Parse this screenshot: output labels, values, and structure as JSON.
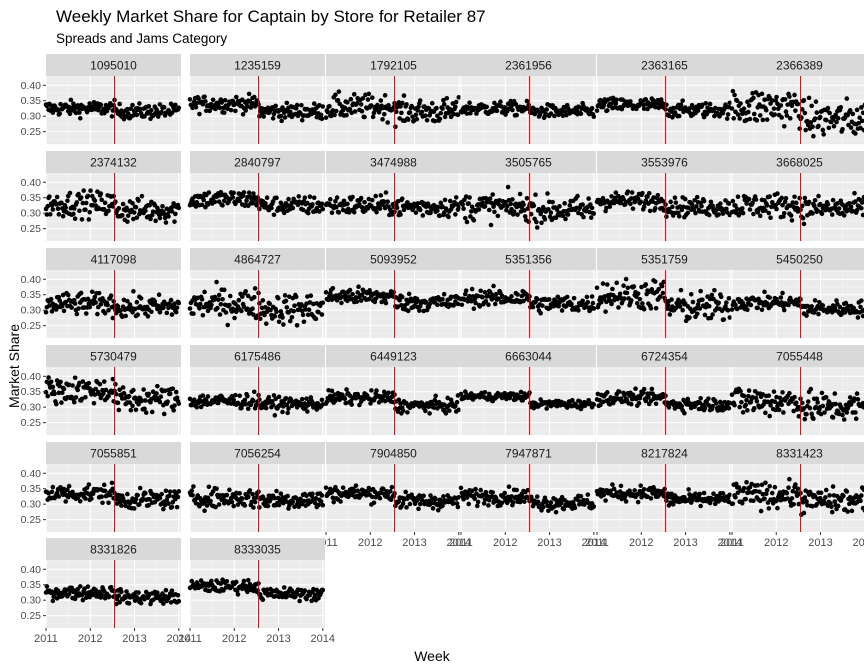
{
  "chart_data": {
    "type": "scatter",
    "title": "Weekly Market Share for Captain by Store for Retailer 87",
    "subtitle": "Spreads and Jams Category",
    "xlabel": "Week",
    "ylabel": "Market Share",
    "xlim": [
      2011.0,
      2014.05
    ],
    "ylim": [
      0.21,
      0.43
    ],
    "x_ticks": [
      2011,
      2012,
      2013,
      2014
    ],
    "x_tick_labels": [
      "2011",
      "2012",
      "2013",
      "2014"
    ],
    "y_ticks": [
      0.25,
      0.3,
      0.35,
      0.4
    ],
    "y_tick_labels": [
      "0.25",
      "0.30",
      "0.35",
      "0.40"
    ],
    "reference_line": {
      "x": 2012.55,
      "color": "#cc0000"
    },
    "facet_layout": {
      "columns": 6,
      "rows": 6
    },
    "point_color": "#000000",
    "panel_background": "#ebebeb",
    "strip_background": "#d9d9d9",
    "grid": true,
    "facets": [
      {
        "label": "1095010",
        "before": 0.325,
        "after": 0.315,
        "spread": 0.012
      },
      {
        "label": "1235159",
        "before": 0.34,
        "after": 0.315,
        "spread": 0.013
      },
      {
        "label": "1792105",
        "before": 0.33,
        "after": 0.315,
        "spread": 0.02
      },
      {
        "label": "2361956",
        "before": 0.325,
        "after": 0.315,
        "spread": 0.011
      },
      {
        "label": "2363165",
        "before": 0.335,
        "after": 0.32,
        "spread": 0.012
      },
      {
        "label": "2366389",
        "before": 0.33,
        "after": 0.29,
        "spread": 0.03
      },
      {
        "label": "2374132",
        "before": 0.33,
        "after": 0.31,
        "spread": 0.02
      },
      {
        "label": "2840797",
        "before": 0.345,
        "after": 0.325,
        "spread": 0.015
      },
      {
        "label": "3474988",
        "before": 0.325,
        "after": 0.32,
        "spread": 0.016
      },
      {
        "label": "3505765",
        "before": 0.32,
        "after": 0.31,
        "spread": 0.022
      },
      {
        "label": "3553976",
        "before": 0.34,
        "after": 0.32,
        "spread": 0.015
      },
      {
        "label": "3668025",
        "before": 0.325,
        "after": 0.315,
        "spread": 0.02
      },
      {
        "label": "4117098",
        "before": 0.32,
        "after": 0.31,
        "spread": 0.018
      },
      {
        "label": "4864727",
        "before": 0.32,
        "after": 0.305,
        "spread": 0.025
      },
      {
        "label": "5093952",
        "before": 0.345,
        "after": 0.325,
        "spread": 0.014
      },
      {
        "label": "5351356",
        "before": 0.34,
        "after": 0.32,
        "spread": 0.014
      },
      {
        "label": "5351759",
        "before": 0.35,
        "after": 0.31,
        "spread": 0.025
      },
      {
        "label": "5450250",
        "before": 0.325,
        "after": 0.305,
        "spread": 0.013
      },
      {
        "label": "5730479",
        "before": 0.355,
        "after": 0.325,
        "spread": 0.022
      },
      {
        "label": "6175486",
        "before": 0.32,
        "after": 0.31,
        "spread": 0.012
      },
      {
        "label": "6449123",
        "before": 0.33,
        "after": 0.305,
        "spread": 0.011
      },
      {
        "label": "6663044",
        "before": 0.335,
        "after": 0.31,
        "spread": 0.007
      },
      {
        "label": "6724354",
        "before": 0.33,
        "after": 0.31,
        "spread": 0.011
      },
      {
        "label": "7055448",
        "before": 0.32,
        "after": 0.3,
        "spread": 0.025
      },
      {
        "label": "7055851",
        "before": 0.335,
        "after": 0.315,
        "spread": 0.015
      },
      {
        "label": "7056254",
        "before": 0.32,
        "after": 0.315,
        "spread": 0.016
      },
      {
        "label": "7904850",
        "before": 0.335,
        "after": 0.31,
        "spread": 0.013
      },
      {
        "label": "7947871",
        "before": 0.325,
        "after": 0.305,
        "spread": 0.013
      },
      {
        "label": "8217824",
        "before": 0.335,
        "after": 0.315,
        "spread": 0.012
      },
      {
        "label": "8331423",
        "before": 0.33,
        "after": 0.31,
        "spread": 0.02
      },
      {
        "label": "8331826",
        "before": 0.325,
        "after": 0.31,
        "spread": 0.011
      },
      {
        "label": "8333035",
        "before": 0.345,
        "after": 0.32,
        "spread": 0.01
      }
    ]
  }
}
